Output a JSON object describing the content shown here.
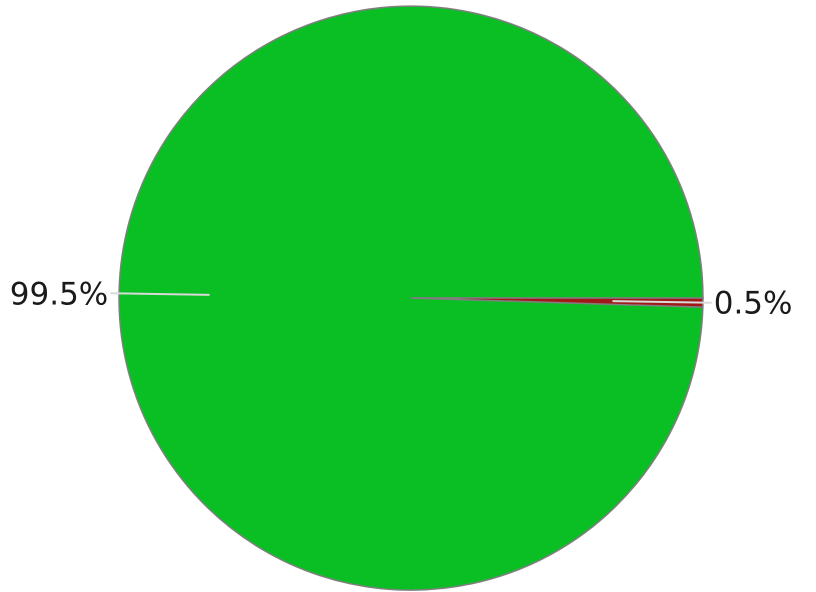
{
  "chart_data": {
    "type": "pie",
    "title": "",
    "slices": [
      {
        "value": 99.5,
        "label": "99.5%",
        "color": "#0abf23"
      },
      {
        "value": 0.5,
        "label": "0.5%",
        "color": "#a01818"
      }
    ],
    "start_angle_deg": 0,
    "direction": "counterclockwise",
    "legend": "none"
  }
}
